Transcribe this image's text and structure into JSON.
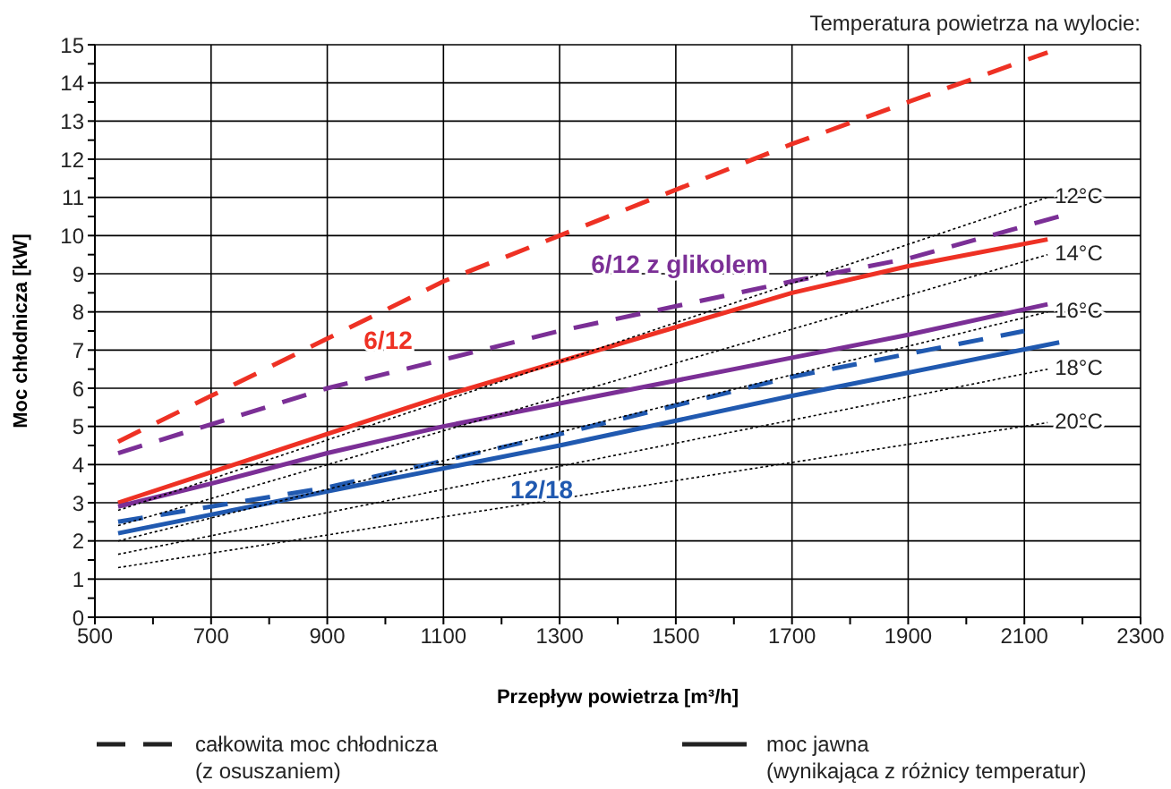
{
  "chart_data": {
    "type": "line",
    "xlabel": "Przepływ powietrza [m³/h]",
    "ylabel": "Moc chłodnicza [kW]",
    "xlim": [
      500,
      2300
    ],
    "xticks": [
      500,
      {
        "value": 600,
        "label": null
      },
      700,
      {
        "value": 800,
        "label": null
      },
      900,
      {
        "value": 1000,
        "label": null
      },
      1100,
      {
        "value": 1200,
        "label": null
      },
      1300,
      {
        "value": 1400,
        "label": null
      },
      1500,
      {
        "value": 1600,
        "label": null
      },
      1700,
      {
        "value": 1800,
        "label": null
      },
      1900,
      {
        "value": 2000,
        "label": null
      },
      2100,
      {
        "value": 2200,
        "label": null
      },
      2300
    ],
    "ylim": [
      0,
      15
    ],
    "yticks": [
      0,
      {
        "value": 0.5,
        "label": null
      },
      1,
      {
        "value": 1.5,
        "label": null
      },
      2,
      {
        "value": 2.5,
        "label": null
      },
      3,
      {
        "value": 3.5,
        "label": null
      },
      4,
      {
        "value": 4.5,
        "label": null
      },
      5,
      {
        "value": 5.5,
        "label": null
      },
      6,
      {
        "value": 6.5,
        "label": null
      },
      7,
      {
        "value": 7.5,
        "label": null
      },
      8,
      {
        "value": 8.5,
        "label": null
      },
      9,
      {
        "value": 9.5,
        "label": null
      },
      10,
      {
        "value": 10.5,
        "label": null
      },
      11,
      {
        "value": 11.5,
        "label": null
      },
      12,
      {
        "value": 12.5,
        "label": null
      },
      13,
      {
        "value": 13.5,
        "label": null
      },
      14,
      {
        "value": 14.5,
        "label": null
      },
      15
    ],
    "grid": true,
    "marker": "none",
    "annotations": [
      "Temperatura powietrza na wylocie:",
      "całkowita moc chłodnicza\n(z osuszaniem)",
      "moc jawna\n(wynikająca z różnicy temperatur)"
    ],
    "series": [
      {
        "name": "6/12",
        "color": "#ee3124",
        "line_style": "dashed",
        "x": [
          540,
          700,
          900,
          1100,
          1300,
          1500,
          1700,
          1900,
          2140
        ],
        "values": [
          4.6,
          5.8,
          7.3,
          8.8,
          10.0,
          11.2,
          12.4,
          13.5,
          14.8
        ]
      },
      {
        "color": "#ee3124",
        "line_style": "solid",
        "x": [
          540,
          700,
          900,
          1100,
          1300,
          1500,
          1700,
          1900,
          2140
        ],
        "values": [
          3.0,
          3.8,
          4.8,
          5.8,
          6.7,
          7.6,
          8.5,
          9.2,
          9.9
        ]
      },
      {
        "name": "6/12 z glikolem",
        "color": "#7b2f96",
        "line_style": "dashed",
        "x": [
          540,
          900,
          1300,
          1700,
          1900,
          2160
        ],
        "values": [
          4.3,
          6.0,
          7.5,
          8.8,
          9.4,
          10.5
        ]
      },
      {
        "color": "#7b2f96",
        "line_style": "solid",
        "x": [
          540,
          700,
          900,
          1100,
          1300,
          1500,
          1700,
          1900,
          2140
        ],
        "values": [
          2.9,
          3.5,
          4.3,
          5.0,
          5.6,
          6.2,
          6.8,
          7.4,
          8.2
        ]
      },
      {
        "color": "#2059b0",
        "line_style": "dashed",
        "x": [
          540,
          900,
          1300,
          1700,
          2100
        ],
        "values": [
          2.5,
          3.4,
          4.8,
          6.3,
          7.5
        ]
      },
      {
        "name": "12/18",
        "color": "#2059b0",
        "line_style": "solid",
        "x": [
          540,
          900,
          1300,
          1700,
          2160
        ],
        "values": [
          2.2,
          3.3,
          4.5,
          5.8,
          7.2
        ]
      },
      {
        "name": "12°C",
        "color": "#000000",
        "line_style": "dotted",
        "x": [
          540,
          2140
        ],
        "values": [
          2.8,
          11.0
        ]
      },
      {
        "name": "14°C",
        "color": "#000000",
        "line_style": "dotted",
        "x": [
          540,
          2140
        ],
        "values": [
          2.4,
          9.5
        ]
      },
      {
        "name": "16°C",
        "color": "#000000",
        "line_style": "dotted",
        "x": [
          540,
          2140
        ],
        "values": [
          2.0,
          8.0
        ]
      },
      {
        "name": "18°C",
        "color": "#000000",
        "line_style": "dotted",
        "x": [
          540,
          2140
        ],
        "values": [
          1.65,
          6.5
        ]
      },
      {
        "name": "20°C",
        "color": "#000000",
        "line_style": "dotted",
        "x": [
          540,
          2140
        ],
        "values": [
          1.3,
          5.1
        ]
      }
    ]
  }
}
